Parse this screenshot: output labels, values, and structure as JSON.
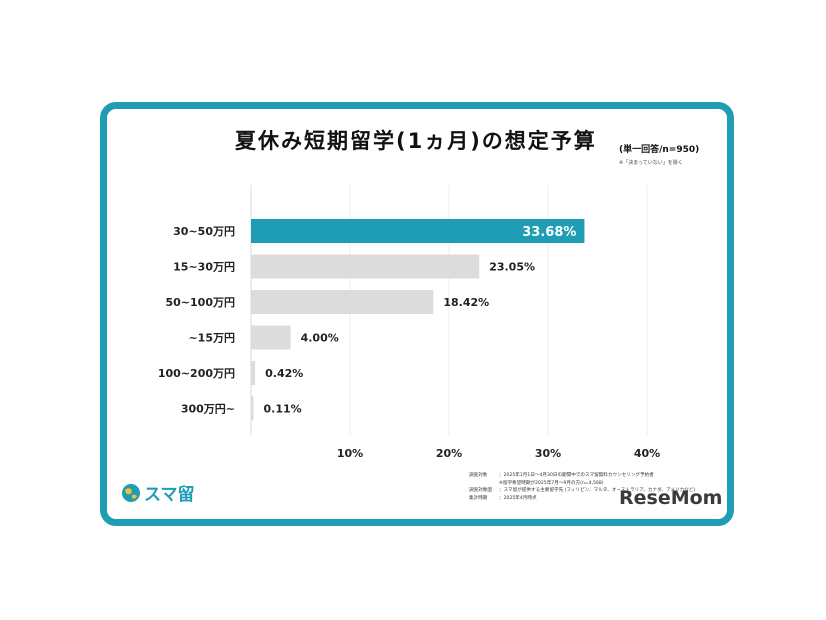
{
  "title": "夏休み短期留学(1ヵ月)の想定予算",
  "subtitle": "(単一回答/n=950)",
  "note": "※「決まっていない」を除く",
  "brand": {
    "logo_text": "スマ留",
    "logo_icon": "globe-icon",
    "accent": "#1f9db5"
  },
  "footnotes": [
    {
      "key": "調査対象",
      "value": "：2025年1月1日〜4月30日の期間中でのスマ留無料カウンセリング予約者"
    },
    {
      "key": "",
      "value": "※留学希望時期が2025年7月〜9月の方(n=4,568)"
    },
    {
      "key": "調査対象国",
      "value": "：スマ留が提供する主要留学先 (フィリピン、マルタ、オーストラリア、カナダ、アメリカなど)"
    },
    {
      "key": "集計時期",
      "value": "：2025年4月時点"
    }
  ],
  "watermark": "ReseMom",
  "chart_data": {
    "type": "bar",
    "orientation": "horizontal",
    "categories": [
      "30~50万円",
      "15~30万円",
      "50~100万円",
      "~15万円",
      "100~200万円",
      "300万円~"
    ],
    "values": [
      33.68,
      23.05,
      18.42,
      4.0,
      0.42,
      0.11
    ],
    "value_labels": [
      "33.68%",
      "23.05%",
      "18.42%",
      "4.00%",
      "0.42%",
      "0.11%"
    ],
    "xticks": [
      "10%",
      "20%",
      "30%",
      "40%"
    ],
    "xtick_values": [
      10,
      20,
      30,
      40
    ],
    "xlim": [
      0,
      40
    ],
    "grid": true,
    "highlight_color": "#1f9db5",
    "bar_color": "#dcdcdc"
  }
}
